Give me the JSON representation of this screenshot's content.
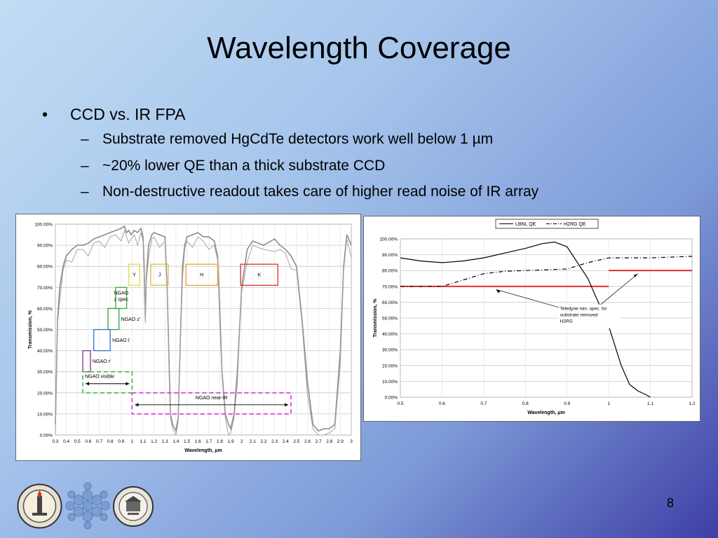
{
  "slide": {
    "title": "Wavelength Coverage",
    "bullet1": "CCD vs. IR FPA",
    "sub1": "Substrate removed HgCdTe detectors work well below 1 µm",
    "sub2": "~20% lower QE than a thick substrate CCD",
    "sub3": "Non-destructive readout takes care of higher read noise of IR array",
    "bullet_mark": "•",
    "dash_mark": "–",
    "page_number": "8"
  },
  "chart_data": [
    {
      "type": "line",
      "title": "",
      "xlabel": "Wavelength, μm",
      "ylabel": "Transmission, %",
      "xlim": [
        0.3,
        3.0
      ],
      "ylim": [
        0,
        100
      ],
      "x_ticks": [
        "0.3",
        "0.4",
        "0.5",
        "0.6",
        "0.7",
        "0.8",
        "0.9",
        "1",
        "1.1",
        "1.2",
        "1.3",
        "1.4",
        "1.5",
        "1.6",
        "1.7",
        "1.8",
        "1.9",
        "2",
        "2.1",
        "2.2",
        "2.3",
        "2.4",
        "2.5",
        "2.6",
        "2.7",
        "2.8",
        "2.9",
        "3"
      ],
      "y_ticks": [
        "0.00%",
        "10.00%",
        "20.00%",
        "30.00%",
        "40.00%",
        "50.00%",
        "60.00%",
        "70.00%",
        "80.00%",
        "90.00%",
        "100.00%"
      ],
      "grid": true,
      "series": [
        {
          "color": "#8c8c8c",
          "x": [
            0.3,
            0.31,
            0.32,
            0.34,
            0.37,
            0.4,
            0.45,
            0.5,
            0.55,
            0.6,
            0.65,
            0.7,
            0.75,
            0.8,
            0.85,
            0.9,
            0.93,
            0.95,
            0.97,
            0.99,
            1.02,
            1.05,
            1.08,
            1.1,
            1.11,
            1.12,
            1.13,
            1.15,
            1.18,
            1.2,
            1.25,
            1.3,
            1.32,
            1.34,
            1.35,
            1.37,
            1.4,
            1.42,
            1.44,
            1.46,
            1.48,
            1.5,
            1.55,
            1.6,
            1.65,
            1.7,
            1.75,
            1.78,
            1.8,
            1.82,
            1.85,
            1.88,
            1.9,
            1.93,
            1.96,
            1.98,
            2.0,
            2.05,
            2.1,
            2.2,
            2.3,
            2.35,
            2.4,
            2.45,
            2.5,
            2.55,
            2.6,
            2.65,
            2.7,
            2.75,
            2.8,
            2.85,
            2.9,
            2.93,
            2.96,
            3.0
          ],
          "y": [
            5,
            30,
            55,
            70,
            80,
            85,
            88,
            90,
            90,
            91,
            93,
            94,
            95,
            96,
            97,
            98,
            99,
            96,
            97,
            95,
            97,
            96,
            98,
            94,
            80,
            55,
            75,
            90,
            95,
            96,
            95,
            94,
            70,
            30,
            10,
            5,
            2,
            8,
            45,
            80,
            90,
            94,
            95,
            96,
            94,
            94,
            92,
            85,
            60,
            30,
            10,
            5,
            3,
            10,
            30,
            50,
            70,
            88,
            92,
            90,
            93,
            90,
            88,
            85,
            80,
            55,
            25,
            5,
            2,
            3,
            3,
            5,
            40,
            80,
            95,
            90
          ]
        }
      ],
      "bands": [
        {
          "label": "Y",
          "range": [
            0.97,
            1.07
          ],
          "y_range": [
            71,
            81
          ],
          "color": "#e6d840"
        },
        {
          "label": "J",
          "range": [
            1.17,
            1.33
          ],
          "y_range": [
            71,
            81
          ],
          "color": "#e6b840"
        },
        {
          "label": "H",
          "range": [
            1.49,
            1.78
          ],
          "y_range": [
            71,
            81
          ],
          "color": "#f0a030"
        },
        {
          "label": "K",
          "range": [
            1.99,
            2.33
          ],
          "y_range": [
            71,
            81
          ],
          "color": "#d83030"
        }
      ],
      "filters": [
        {
          "label": "NGAO z spec",
          "line1": "NGAO",
          "line2": "z spec",
          "range": [
            0.85,
            0.95
          ],
          "y_range": [
            60,
            70
          ],
          "color": "#30b040"
        },
        {
          "label": "NGAO z'",
          "range": [
            0.78,
            0.88
          ],
          "y_range": [
            50,
            60
          ],
          "color": "#30a040"
        },
        {
          "label": "NGAO i'",
          "range": [
            0.65,
            0.8
          ],
          "y_range": [
            40,
            50
          ],
          "color": "#3070c8"
        },
        {
          "label": "NGAO r'",
          "range": [
            0.55,
            0.62
          ],
          "y_range": [
            30,
            40
          ],
          "color": "#8030a0"
        }
      ],
      "coverage": [
        {
          "label": "NGAO visible",
          "range": [
            0.55,
            1.0
          ],
          "y_range": [
            20,
            30
          ],
          "color": "#30c040"
        },
        {
          "label": "NGAO near-IR",
          "range": [
            1.0,
            2.45
          ],
          "y_range": [
            10,
            20
          ],
          "color": "#e030e0"
        }
      ]
    },
    {
      "type": "line",
      "title": "",
      "xlabel": "Wavelength, μm",
      "ylabel": "Transmission, %",
      "xlim": [
        0.5,
        1.2
      ],
      "ylim": [
        0,
        100
      ],
      "x_ticks": [
        "0.5",
        "0.6",
        "0.7",
        "0.8",
        "0.9",
        "1",
        "1.1",
        "1.2"
      ],
      "y_ticks": [
        "0.00%",
        "10.00%",
        "20.00%",
        "30.00%",
        "40.00%",
        "50.00%",
        "60.00%",
        "70.00%",
        "80.00%",
        "90.00%",
        "100.00%"
      ],
      "grid": true,
      "legend": "top-center",
      "series": [
        {
          "name": "LBNL QE",
          "dash": "solid",
          "color": "#000000",
          "x": [
            0.5,
            0.55,
            0.6,
            0.65,
            0.7,
            0.75,
            0.8,
            0.84,
            0.87,
            0.9,
            0.95,
            1.0,
            1.03,
            1.05,
            1.07,
            1.09,
            1.1
          ],
          "y": [
            88,
            86,
            85,
            86,
            88,
            91,
            94,
            97,
            98,
            95,
            75,
            45,
            20,
            8,
            4,
            1.5,
            0
          ]
        },
        {
          "name": "H2RG QE",
          "dash": "dashdot",
          "color": "#000000",
          "x": [
            0.5,
            0.55,
            0.6,
            0.65,
            0.7,
            0.75,
            0.8,
            0.85,
            0.9,
            0.95,
            1.0,
            1.05,
            1.1,
            1.15,
            1.2
          ],
          "y": [
            70,
            70,
            70,
            74,
            78,
            79.5,
            80,
            80.5,
            81,
            85,
            88,
            88,
            88,
            88.5,
            89
          ]
        }
      ],
      "spec_lines": [
        {
          "range": [
            0.5,
            1.0
          ],
          "value": 70,
          "color": "#e02020"
        },
        {
          "range": [
            1.0,
            1.2
          ],
          "value": 80,
          "color": "#e02020"
        }
      ],
      "annotation": {
        "line1": "Teledyne min. spec. for",
        "line2": "substrate removed",
        "line3": "H2RG"
      }
    }
  ]
}
